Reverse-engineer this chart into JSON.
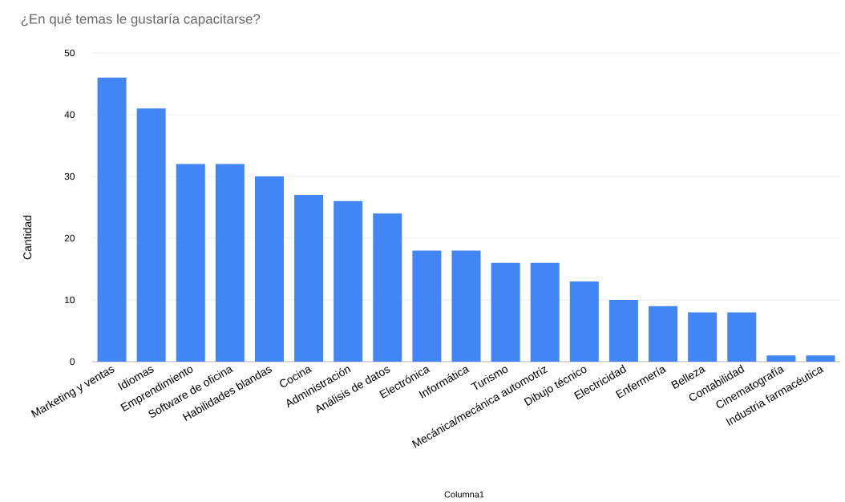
{
  "chart_data": {
    "type": "bar",
    "title": "¿En qué temas le gustaría capacitarse?",
    "xlabel": "Columna1",
    "ylabel": "Cantidad",
    "categories": [
      "Marketing y ventas",
      "Idiomas",
      "Emprendimiento",
      "Software de oficina",
      "Habilidades blandas",
      "Cocina",
      "Administración",
      "Análisis de datos",
      "Electrónica",
      "Informática",
      "Turismo",
      "Mecánica/mecánica automotriz",
      "Dibujo técnico",
      "Electricidad",
      "Enfermería",
      "Belleza",
      "Contabilidad",
      "Cinematografía",
      "Industria farmacéutica"
    ],
    "values": [
      46,
      41,
      32,
      32,
      30,
      27,
      26,
      24,
      18,
      18,
      16,
      16,
      13,
      10,
      9,
      8,
      8,
      1,
      1
    ],
    "color": "#4285f4",
    "ylim": [
      0,
      50
    ],
    "yticks": [
      0,
      10,
      20,
      30,
      40,
      50
    ],
    "grid": "y"
  }
}
